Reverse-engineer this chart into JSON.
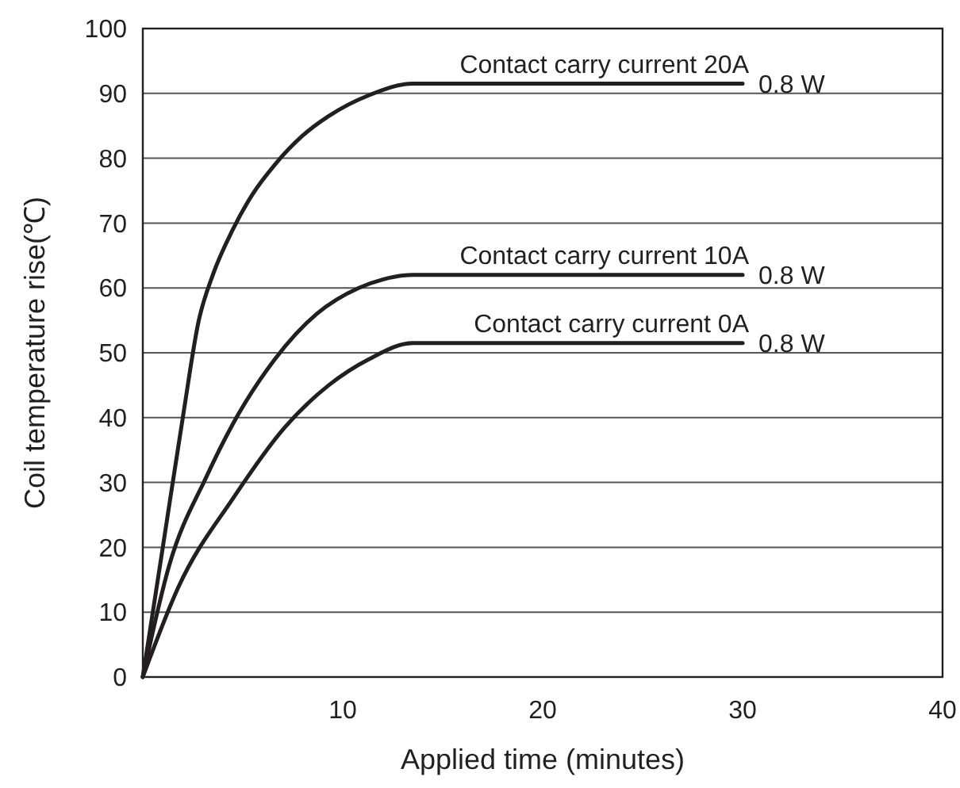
{
  "chart_data": {
    "type": "line",
    "xlabel": "Applied time (minutes)",
    "ylabel": "Coil temperature rise(℃)",
    "xlim": [
      0,
      40
    ],
    "ylim": [
      0,
      100
    ],
    "xticks": [
      10,
      20,
      30,
      40
    ],
    "yticks": [
      0,
      10,
      20,
      30,
      40,
      50,
      60,
      70,
      80,
      90,
      100
    ],
    "grid": "y",
    "legend": false,
    "marker": "none",
    "line_style": "solid",
    "series": [
      {
        "name": "Contact carry current 20A",
        "color": "#231f20",
        "x": [
          0,
          1,
          2,
          2.8,
          3.5,
          4.5,
          5.5,
          6.6,
          8,
          9.3,
          11.3,
          13.5,
          30
        ],
        "values": [
          0,
          20,
          40,
          55,
          62,
          69,
          74.5,
          79,
          83.5,
          86.5,
          89.7,
          91.5,
          91.5
        ]
      },
      {
        "name": "Contact carry current 10A",
        "color": "#231f20",
        "x": [
          0,
          1.3,
          3.2,
          4.5,
          6.6,
          8.7,
          10.8,
          12,
          13.5,
          30
        ],
        "values": [
          0,
          17,
          31,
          39,
          49,
          56,
          60,
          61.3,
          62,
          62
        ]
      },
      {
        "name": "Contact carry current 0A",
        "color": "#231f20",
        "x": [
          0,
          1.8,
          4.5,
          7.1,
          9.3,
          11.3,
          13.5,
          30
        ],
        "values": [
          0,
          14,
          27.5,
          38.5,
          45,
          49,
          51.5,
          51.5
        ]
      }
    ],
    "annotations": [
      "0.8 W",
      "0.8 W",
      "0.8 W"
    ]
  }
}
